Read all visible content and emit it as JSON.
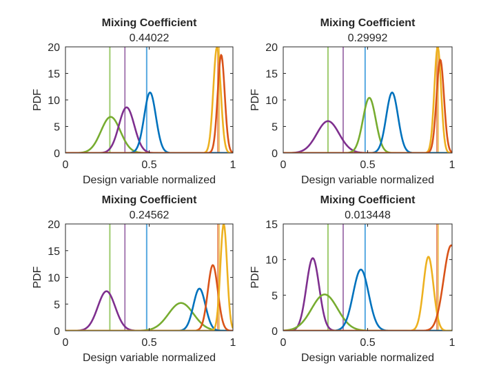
{
  "figure": {
    "colors": {
      "blue": "#0072BD",
      "orange": "#D95319",
      "yellow": "#EDB120",
      "purple": "#7E2F8E",
      "green": "#77AC30"
    },
    "x_marker_colors": {
      "purple": "#A77CB3",
      "green": "#9ECB6E",
      "blue": "#55A8E0",
      "orange": "#E9916B",
      "yellow": "#F2C86E"
    },
    "vertical_markers": {
      "green": 0.265,
      "purple": 0.355,
      "blue": 0.485,
      "orange": 0.91,
      "yellow": 0.918
    }
  },
  "chart_data": [
    {
      "type": "line",
      "title": "Mixing Coefficient",
      "subtitle": "0.44022",
      "xlabel": "Design variable normalized",
      "ylabel": "PDF",
      "xlim": [
        0,
        1
      ],
      "ylim": [
        0,
        20
      ],
      "xticks": [
        "0",
        "0.5",
        "1"
      ],
      "yticks": [
        "0",
        "5",
        "10",
        "15",
        "20"
      ],
      "series": [
        {
          "name": "green",
          "color": "green",
          "mu": 0.27,
          "sigma": 0.058,
          "peak": 6.8
        },
        {
          "name": "purple",
          "color": "purple",
          "mu": 0.365,
          "sigma": 0.046,
          "peak": 8.6
        },
        {
          "name": "blue",
          "color": "blue",
          "mu": 0.505,
          "sigma": 0.035,
          "peak": 11.4
        },
        {
          "name": "yellow",
          "color": "yellow",
          "mu": 0.905,
          "sigma": 0.022,
          "peak": 20
        },
        {
          "name": "orange",
          "color": "orange",
          "mu": 0.93,
          "sigma": 0.021,
          "peak": 18.5
        }
      ]
    },
    {
      "type": "line",
      "title": "Mixing Coefficient",
      "subtitle": "0.29992",
      "xlabel": "Design variable normalized",
      "ylabel": "PDF",
      "xlim": [
        0,
        1
      ],
      "ylim": [
        0,
        20
      ],
      "xticks": [
        "0",
        "0.5",
        "1"
      ],
      "yticks": [
        "0",
        "5",
        "10",
        "15",
        "20"
      ],
      "series": [
        {
          "name": "purple",
          "color": "purple",
          "mu": 0.265,
          "sigma": 0.066,
          "peak": 6
        },
        {
          "name": "green",
          "color": "green",
          "mu": 0.51,
          "sigma": 0.038,
          "peak": 10.4
        },
        {
          "name": "blue",
          "color": "blue",
          "mu": 0.645,
          "sigma": 0.035,
          "peak": 11.4
        },
        {
          "name": "yellow",
          "color": "yellow",
          "mu": 0.915,
          "sigma": 0.02,
          "peak": 20
        },
        {
          "name": "orange",
          "color": "orange",
          "mu": 0.93,
          "sigma": 0.022,
          "peak": 17.6
        }
      ]
    },
    {
      "type": "line",
      "title": "Mixing Coefficient",
      "subtitle": "0.24562",
      "xlabel": "Design variable normalized",
      "ylabel": "PDF",
      "xlim": [
        0,
        1
      ],
      "ylim": [
        0,
        20
      ],
      "xticks": [
        "0",
        "0.5",
        "1"
      ],
      "yticks": [
        "0",
        "5",
        "10",
        "15",
        "20"
      ],
      "series": [
        {
          "name": "purple",
          "color": "purple",
          "mu": 0.245,
          "sigma": 0.052,
          "peak": 7.4
        },
        {
          "name": "green",
          "color": "green",
          "mu": 0.69,
          "sigma": 0.075,
          "peak": 5.2
        },
        {
          "name": "blue",
          "color": "blue",
          "mu": 0.8,
          "sigma": 0.036,
          "peak": 7.9
        },
        {
          "name": "orange",
          "color": "orange",
          "mu": 0.88,
          "sigma": 0.03,
          "peak": 12.3
        },
        {
          "name": "yellow",
          "color": "yellow",
          "mu": 0.945,
          "sigma": 0.02,
          "peak": 20
        }
      ]
    },
    {
      "type": "line",
      "title": "Mixing Coefficient",
      "subtitle": "0.013448",
      "xlabel": "Design variable normalized",
      "ylabel": "PDF",
      "xlim": [
        0,
        1
      ],
      "ylim": [
        0,
        15
      ],
      "xticks": [
        "0",
        "0.5",
        "1"
      ],
      "yticks": [
        "0",
        "5",
        "10",
        "15"
      ],
      "series": [
        {
          "name": "purple",
          "color": "purple",
          "mu": 0.175,
          "sigma": 0.038,
          "peak": 10.2
        },
        {
          "name": "green",
          "color": "green",
          "mu": 0.245,
          "sigma": 0.077,
          "peak": 5.1
        },
        {
          "name": "blue",
          "color": "blue",
          "mu": 0.46,
          "sigma": 0.046,
          "peak": 8.6
        },
        {
          "name": "yellow",
          "color": "yellow",
          "mu": 0.86,
          "sigma": 0.03,
          "peak": 10.4
        },
        {
          "name": "orange",
          "color": "orange",
          "mu": 0.995,
          "sigma": 0.045,
          "peak": 12
        }
      ]
    }
  ]
}
